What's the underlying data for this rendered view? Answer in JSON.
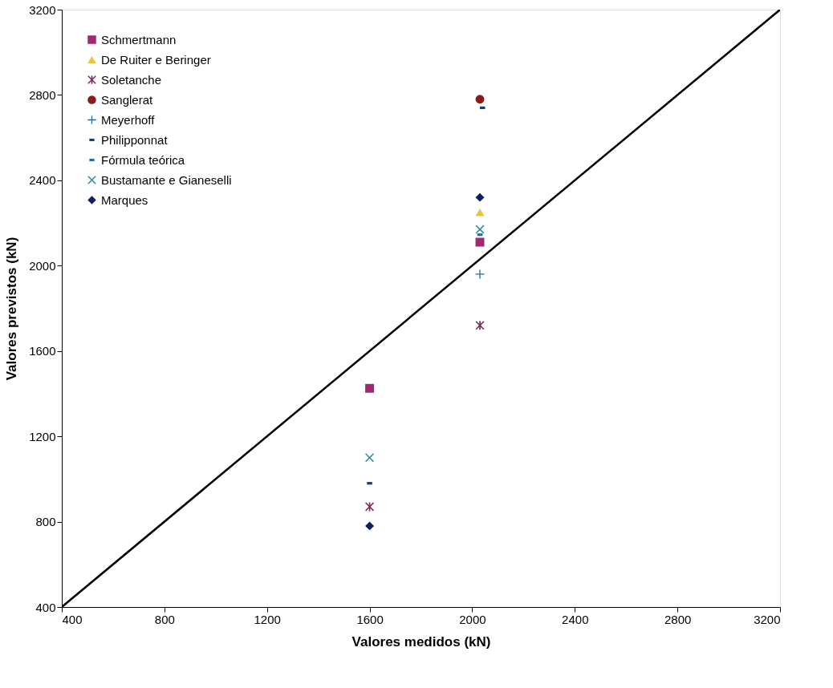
{
  "chart_data": {
    "type": "scatter",
    "xlabel": "Valores medidos (kN)",
    "ylabel": "Valores previstos (kN)",
    "xlim": [
      400,
      3200
    ],
    "ylim": [
      400,
      3200
    ],
    "xticks": [
      400,
      800,
      1200,
      1600,
      2000,
      2400,
      2800,
      3200
    ],
    "yticks": [
      400,
      800,
      1200,
      1600,
      2000,
      2400,
      2800,
      3200
    ],
    "grid": false,
    "legend": "top left",
    "series": [
      {
        "name": "Schmertmann",
        "color": "#a0286e",
        "marker": "square",
        "x": [
          1600,
          2030
        ],
        "values": [
          1425,
          2110
        ]
      },
      {
        "name": "De Ruiter e Beringer",
        "color": "#e8c440",
        "marker": "triangle",
        "x": [
          2030
        ],
        "values": [
          2250
        ]
      },
      {
        "name": "Soletanche",
        "color": "#7a2a5a",
        "marker": "asterisk",
        "x": [
          1600,
          2030
        ],
        "values": [
          870,
          1720
        ]
      },
      {
        "name": "Sanglerat",
        "color": "#8b1a1a",
        "marker": "circle",
        "x": [
          2030
        ],
        "values": [
          2780
        ]
      },
      {
        "name": "Meyerhoff",
        "color": "#1a6fa0",
        "marker": "plus",
        "x": [
          2030
        ],
        "values": [
          1960
        ]
      },
      {
        "name": "Philipponnat",
        "color": "#1a3a8a",
        "x": [
          1600,
          2040
        ],
        "values": [
          980,
          2740
        ]
      },
      {
        "name": "Fórmula teórica",
        "color": "#1f6fb0",
        "x": [
          2030
        ],
        "values": [
          2145
        ]
      },
      {
        "name": "Bustamante e Gianeselli",
        "color": "#2a8aa8",
        "marker": "x",
        "x": [
          1600,
          2030
        ],
        "values": [
          1100,
          2170
        ]
      },
      {
        "name": "Marques",
        "color": "#0f1f5e",
        "marker": "diamond",
        "x": [
          1600,
          2030
        ],
        "values": [
          780,
          2320
        ]
      },
      {
        "type": "line",
        "color": "#000000",
        "line_style": "solid",
        "x": [
          400,
          3200
        ],
        "values": [
          400,
          3200
        ]
      }
    ]
  }
}
